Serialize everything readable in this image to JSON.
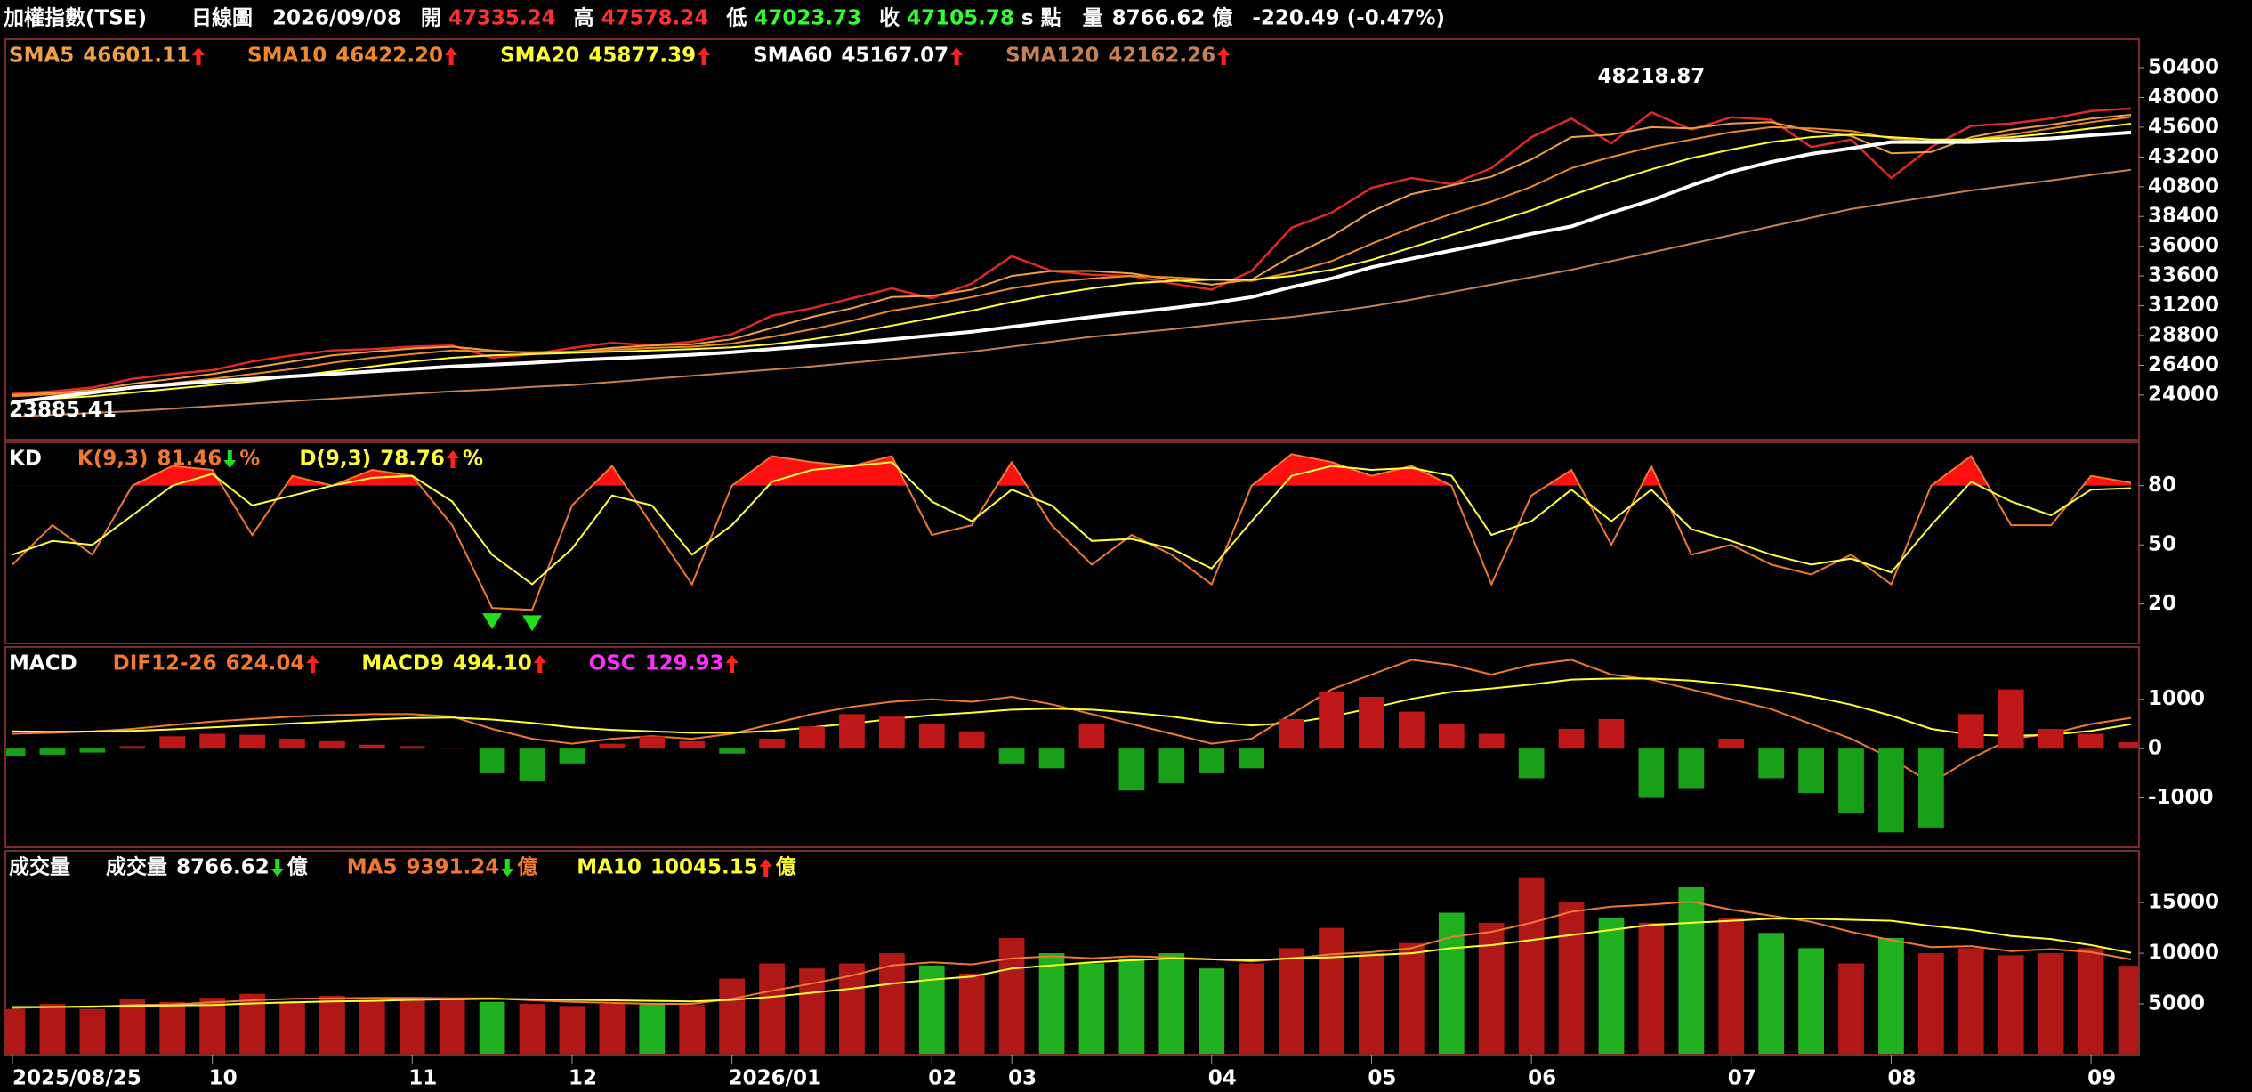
{
  "header": {
    "title": "加權指數(TSE)",
    "period": "日線圖",
    "date": "2026/09/08",
    "quotes": [
      {
        "label": "開",
        "value": 47335.24,
        "color": "#ff3030"
      },
      {
        "label": "高",
        "value": 47578.24,
        "color": "#ff3030"
      },
      {
        "label": "低",
        "value": 47023.73,
        "color": "#30ff30"
      },
      {
        "label": "收",
        "value": 47105.78,
        "color": "#30ff30"
      }
    ],
    "close_mark": "s",
    "unit": "點",
    "volume_label": "量",
    "volume": 8766.62,
    "volume_unit": "億",
    "change": -220.49,
    "change_pct": {
      "value": -0.47,
      "label": "(-0.47%)"
    }
  },
  "chart_data": [
    {
      "type": "line",
      "ylim": [
        20400,
        52700
      ],
      "yticks": [
        24000,
        26400,
        28800,
        31200,
        33600,
        36000,
        38400,
        40800,
        43200,
        45600,
        48000,
        50400
      ],
      "annotations": [
        {
          "index": 41,
          "value": 48218.87
        },
        {
          "index": 0,
          "value": 23885.41
        }
      ],
      "series": [
        {
          "style": "line",
          "color": "#e02828",
          "values": [
            24100,
            24300,
            24600,
            25300,
            25700,
            26000,
            26700,
            27200,
            27600,
            27700,
            27900,
            28000,
            27000,
            27300,
            27800,
            28200,
            28000,
            28300,
            28900,
            30400,
            31000,
            31800,
            32600,
            31800,
            33000,
            35200,
            34000,
            33700,
            33600,
            33000,
            32500,
            34000,
            37500,
            38700,
            40700,
            41500,
            41000,
            42300,
            44800,
            46300,
            44300,
            46800,
            45400,
            46400,
            46200,
            44000,
            44600,
            41500,
            44000,
            45700,
            45900,
            46300,
            46900,
            47105.78
          ]
        },
        {
          "name": "SMA5",
          "style": "line",
          "color": "#f0a040",
          "trend": "up",
          "last": 46601.11,
          "values": [
            24000,
            24150,
            24400,
            24900,
            25300,
            25700,
            26200,
            26700,
            27200,
            27500,
            27750,
            27900,
            27600,
            27400,
            27500,
            27800,
            28000,
            28100,
            28500,
            29400,
            30300,
            31000,
            31900,
            32000,
            32500,
            33600,
            34000,
            34000,
            33800,
            33300,
            32900,
            33300,
            35200,
            36800,
            38800,
            40200,
            40900,
            41600,
            43000,
            44800,
            45000,
            45600,
            45500,
            45900,
            46000,
            45300,
            44900,
            43500,
            43600,
            44800,
            45400,
            45800,
            46300,
            46601.11
          ]
        },
        {
          "name": "SMA10",
          "style": "line",
          "color": "#f08828",
          "trend": "up",
          "last": {
            "value": 46422.2,
            "label": "46422.20"
          },
          "values": [
            23900,
            24050,
            24250,
            24600,
            24950,
            25300,
            25700,
            26100,
            26600,
            27000,
            27300,
            27600,
            27500,
            27450,
            27500,
            27650,
            27800,
            27900,
            28150,
            28700,
            29300,
            30000,
            30800,
            31300,
            31900,
            32600,
            33100,
            33400,
            33600,
            33500,
            33300,
            33200,
            33900,
            34800,
            36200,
            37500,
            38600,
            39600,
            40800,
            42300,
            43200,
            44000,
            44600,
            45200,
            45600,
            45500,
            45300,
            44700,
            44400,
            44600,
            45000,
            45500,
            46000,
            46422.2
          ]
        },
        {
          "name": "SMA20",
          "style": "line",
          "color": "#ffff30",
          "trend": "up",
          "last": 45877.39,
          "values": [
            23500,
            23700,
            23900,
            24200,
            24500,
            24800,
            25100,
            25500,
            25900,
            26300,
            26700,
            27000,
            27200,
            27300,
            27400,
            27500,
            27600,
            27700,
            27850,
            28100,
            28500,
            29000,
            29600,
            30200,
            30800,
            31500,
            32100,
            32600,
            33000,
            33200,
            33300,
            33300,
            33600,
            34100,
            34900,
            35900,
            36900,
            37900,
            38900,
            40100,
            41200,
            42200,
            43100,
            43800,
            44400,
            44800,
            45000,
            44800,
            44600,
            44600,
            44800,
            45100,
            45500,
            45877.39
          ]
        },
        {
          "name": "SMA60",
          "style": "line",
          "color": "#ffffff",
          "trend": "up",
          "last": 45167.07,
          "values": [
            23400,
            23800,
            24200,
            24600,
            24850,
            25100,
            25300,
            25500,
            25700,
            25900,
            26100,
            26300,
            26450,
            26600,
            26800,
            26950,
            27100,
            27250,
            27450,
            27700,
            27950,
            28200,
            28500,
            28800,
            29100,
            29500,
            29900,
            30300,
            30650,
            31000,
            31400,
            31900,
            32700,
            33400,
            34300,
            35000,
            35650,
            36300,
            37000,
            37600,
            38700,
            39700,
            40900,
            42000,
            42800,
            43450,
            43900,
            44400,
            44400,
            44400,
            44550,
            44700,
            44950,
            45167.07
          ]
        },
        {
          "name": "SMA120",
          "style": "line",
          "color": "#c88050",
          "trend": "up",
          "last": 42162.26,
          "values": [
            22250,
            22400,
            22550,
            22700,
            22900,
            23100,
            23300,
            23500,
            23700,
            23900,
            24100,
            24300,
            24450,
            24650,
            24800,
            25050,
            25300,
            25550,
            25800,
            26050,
            26300,
            26600,
            26900,
            27200,
            27500,
            27900,
            28300,
            28700,
            29000,
            29300,
            29650,
            30000,
            30300,
            30700,
            31150,
            31700,
            32300,
            32900,
            33500,
            34100,
            34800,
            35500,
            36200,
            36900,
            37600,
            38300,
            39000,
            39500,
            40000,
            40500,
            40900,
            41300,
            41750,
            42162.26
          ]
        }
      ]
    },
    {
      "type": "line",
      "title": "KD",
      "ylim": [
        0,
        102
      ],
      "yticks": [
        20,
        50,
        80
      ],
      "overbought_fill": "#ff1010",
      "oversold_mark": "#20e020",
      "series": [
        {
          "name": "K(9,3)",
          "style": "line",
          "color": "#f07830",
          "trend": "down",
          "unit": "%",
          "last": 81.46,
          "values": [
            40,
            60,
            45,
            80,
            90,
            88,
            55,
            85,
            80,
            88,
            85,
            60,
            18,
            17,
            70,
            90,
            60,
            30,
            80,
            95,
            92,
            90,
            95,
            55,
            60,
            92,
            60,
            40,
            55,
            45,
            30,
            80,
            96,
            92,
            85,
            90,
            80,
            30,
            75,
            88,
            50,
            90,
            45,
            50,
            40,
            35,
            45,
            30,
            80,
            95,
            60,
            60,
            85,
            81.46
          ]
        },
        {
          "name": "D(9,3)",
          "style": "line",
          "color": "#ffff40",
          "trend": "up",
          "unit": "%",
          "last": 78.76,
          "values": [
            45,
            52,
            50,
            65,
            80,
            86,
            70,
            75,
            80,
            84,
            85,
            72,
            45,
            30,
            48,
            75,
            70,
            45,
            60,
            82,
            88,
            90,
            92,
            72,
            62,
            78,
            70,
            52,
            53,
            48,
            38,
            62,
            85,
            90,
            88,
            89,
            85,
            55,
            62,
            78,
            62,
            78,
            58,
            52,
            45,
            40,
            43,
            36,
            60,
            82,
            72,
            65,
            78,
            78.76
          ]
        }
      ]
    },
    {
      "type": "bar",
      "title": "MACD",
      "ylim": [
        -2000,
        2060
      ],
      "yticks": [
        -1000,
        0,
        1000
      ],
      "up_color": "#c01818",
      "down_color": "#18a018",
      "series": [
        {
          "name": "DIF12-26",
          "style": "line",
          "color": "#f07830",
          "trend": "up",
          "last": 624.04,
          "values": [
            300,
            320,
            350,
            400,
            480,
            550,
            600,
            650,
            680,
            700,
            700,
            650,
            400,
            200,
            100,
            200,
            250,
            200,
            300,
            500,
            700,
            850,
            950,
            1000,
            950,
            1050,
            900,
            700,
            500,
            300,
            100,
            200,
            700,
            1200,
            1500,
            1800,
            1700,
            1500,
            1700,
            1800,
            1500,
            1400,
            1200,
            1000,
            800,
            500,
            200,
            -200,
            -700,
            -200,
            200,
            300,
            500,
            624.04
          ]
        },
        {
          "name": "MACD9",
          "style": "line",
          "color": "#ffff30",
          "trend": "up",
          "last": {
            "value": 494.1,
            "label": "494.10"
          },
          "values": [
            350,
            340,
            345,
            360,
            390,
            430,
            470,
            510,
            550,
            590,
            620,
            630,
            590,
            520,
            430,
            380,
            350,
            320,
            320,
            360,
            430,
            510,
            600,
            680,
            730,
            790,
            810,
            790,
            730,
            650,
            540,
            470,
            520,
            650,
            820,
            1010,
            1150,
            1220,
            1300,
            1400,
            1420,
            1420,
            1380,
            1300,
            1200,
            1060,
            890,
            670,
            400,
            280,
            260,
            280,
            360,
            494.1
          ]
        },
        {
          "name": "OSC",
          "style": "bar",
          "color_rule": "sign",
          "color": "#ff30ff",
          "trend": "up",
          "last": 129.93,
          "values": [
            -150,
            -120,
            -80,
            50,
            250,
            300,
            280,
            200,
            150,
            80,
            50,
            20,
            -500,
            -650,
            -300,
            100,
            250,
            150,
            -100,
            200,
            450,
            700,
            650,
            500,
            350,
            -300,
            -400,
            500,
            -850,
            -700,
            -500,
            -400,
            600,
            1150,
            1050,
            750,
            500,
            300,
            -600,
            400,
            600,
            -1000,
            -800,
            200,
            -600,
            -900,
            -1300,
            -1700,
            -1600,
            700,
            1200,
            400,
            300,
            129.93
          ]
        }
      ]
    },
    {
      "type": "bar",
      "title": "成交量",
      "ylim": [
        0,
        20100
      ],
      "yticks": [
        5000,
        10000,
        15000
      ],
      "up_color": "#b01818",
      "down_color": "#20b020",
      "categories": [
        "2025/08/25",
        null,
        null,
        null,
        null,
        "10",
        null,
        null,
        null,
        null,
        "11",
        null,
        null,
        null,
        "12",
        null,
        null,
        null,
        "2026/01",
        null,
        null,
        null,
        null,
        "02",
        null,
        "03",
        null,
        null,
        null,
        null,
        "04",
        null,
        null,
        null,
        "05",
        null,
        null,
        null,
        "06",
        null,
        null,
        null,
        null,
        "07",
        null,
        null,
        null,
        "08",
        null,
        null,
        null,
        null,
        "09",
        null
      ],
      "series": [
        {
          "name": "成交量",
          "style": "bar",
          "color_rule": "price",
          "color": "#ffffff",
          "trend": "down",
          "unit": "億",
          "last": 8766.62,
          "values": [
            4500,
            5000,
            4500,
            5500,
            5200,
            5600,
            6000,
            5200,
            5800,
            5400,
            5600,
            5500,
            5200,
            5000,
            4800,
            5000,
            5100,
            4900,
            7500,
            9000,
            8500,
            9000,
            10000,
            8800,
            8000,
            11500,
            10000,
            9000,
            9500,
            10000,
            8500,
            9000,
            10500,
            12500,
            10000,
            11000,
            14000,
            13000,
            17500,
            15000,
            13500,
            13000,
            16500,
            13500,
            12000,
            10500,
            9000,
            11500,
            10000,
            10500,
            9800,
            10000,
            10500,
            8766.62
          ]
        },
        {
          "name": "MA5",
          "style": "line",
          "color": "#f07830",
          "trend": "down",
          "unit": "億",
          "last": 9391.24,
          "values": [
            4600,
            4700,
            4700,
            4900,
            4950,
            5150,
            5350,
            5500,
            5550,
            5600,
            5600,
            5550,
            5550,
            5350,
            5200,
            5100,
            5000,
            5000,
            5500,
            6300,
            7000,
            7800,
            8800,
            9100,
            8900,
            9500,
            9700,
            9500,
            9700,
            9600,
            9400,
            9200,
            9500,
            9900,
            10100,
            10500,
            11600,
            12100,
            13000,
            14100,
            14600,
            14800,
            15100,
            14300,
            13700,
            13100,
            12100,
            11300,
            10600,
            10700,
            10200,
            10400,
            10100,
            9391.24
          ]
        },
        {
          "name": "MA10",
          "style": "line",
          "color": "#ffff30",
          "trend": "up",
          "unit": "億",
          "last": 10045.15,
          "values": [
            4700,
            4700,
            4750,
            4800,
            4850,
            4900,
            5050,
            5150,
            5250,
            5300,
            5400,
            5450,
            5500,
            5450,
            5400,
            5350,
            5300,
            5250,
            5400,
            5700,
            6100,
            6500,
            7000,
            7400,
            7700,
            8500,
            8800,
            9100,
            9300,
            9500,
            9400,
            9300,
            9500,
            9600,
            9800,
            10000,
            10500,
            10800,
            11300,
            11800,
            12300,
            12800,
            13000,
            13200,
            13400,
            13400,
            13300,
            13200,
            12700,
            12300,
            11700,
            11400,
            10800,
            10045.15
          ]
        }
      ]
    }
  ]
}
